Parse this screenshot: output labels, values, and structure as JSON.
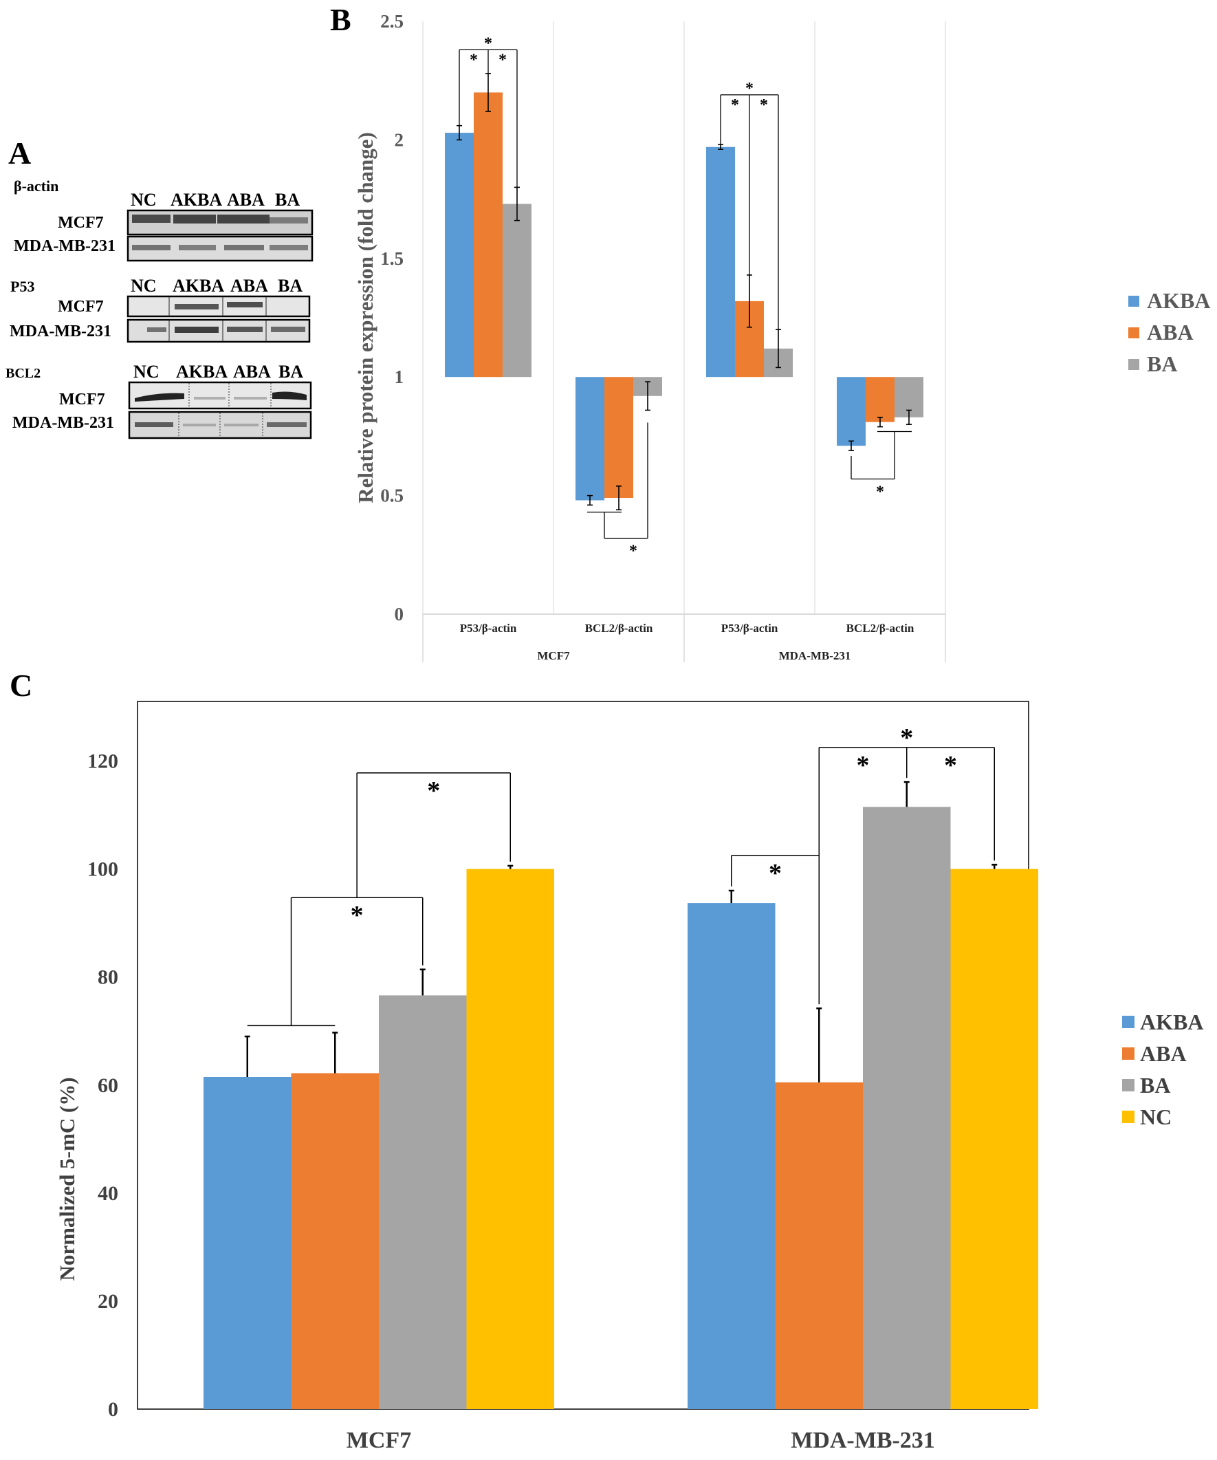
{
  "panels": {
    "a": "A",
    "b": "B",
    "c": "C"
  },
  "colors": {
    "AKBA": "#5b9bd5",
    "ABA": "#ed7d31",
    "BA": "#a5a5a5",
    "NC": "#ffc000"
  },
  "blots": [
    {
      "title": "β-actin",
      "lanes": [
        "NC",
        "AKBA",
        "ABA",
        "BA"
      ],
      "rows": [
        "MCF7",
        "MDA-MB-231"
      ]
    },
    {
      "title": "P53",
      "lanes": [
        "NC",
        "AKBA",
        "ABA",
        "BA"
      ],
      "rows": [
        "MCF7",
        "MDA-MB-231"
      ]
    },
    {
      "title": "BCL2",
      "lanes": [
        "NC",
        "AKBA",
        "ABA",
        "BA"
      ],
      "rows": [
        "MCF7",
        "MDA-MB-231"
      ]
    }
  ],
  "chart_data": [
    {
      "id": "B",
      "type": "bar",
      "ylabel": "Relative protein expression (fold change)",
      "ylim": [
        0,
        2.5
      ],
      "yticks": [
        "0",
        "0.5",
        "1",
        "1.5",
        "2",
        "2.5"
      ],
      "baseline": 1,
      "groups": [
        "MCF7",
        "MDA-MB-231"
      ],
      "categories": [
        "P53/β-actin",
        "BCL2/β-actin",
        "P53/β-actin",
        "BCL2/β-actin"
      ],
      "series": [
        {
          "name": "AKBA",
          "values": [
            2.03,
            0.48,
            1.97,
            0.71
          ],
          "errors": [
            0.03,
            0.02,
            0.01,
            0.02
          ]
        },
        {
          "name": "ABA",
          "values": [
            2.2,
            0.49,
            1.32,
            0.81
          ],
          "errors": [
            0.08,
            0.05,
            0.11,
            0.02
          ]
        },
        {
          "name": "BA",
          "values": [
            1.73,
            0.92,
            1.12,
            0.83
          ],
          "errors": [
            0.07,
            0.06,
            0.08,
            0.03
          ]
        }
      ],
      "significance": [
        "*",
        "*",
        "*",
        "*",
        "*",
        "*",
        "*",
        "*"
      ]
    },
    {
      "id": "C",
      "type": "bar",
      "ylabel": "Normalized 5-mC (%)",
      "ylim": [
        0,
        130
      ],
      "yticks": [
        "0",
        "20",
        "40",
        "60",
        "80",
        "100",
        "120"
      ],
      "categories": [
        "MCF7",
        "MDA-MB-231"
      ],
      "series": [
        {
          "name": "AKBA",
          "values": [
            61.5,
            93.7
          ],
          "errors": [
            7.5,
            2.3
          ]
        },
        {
          "name": "ABA",
          "values": [
            62.2,
            60.5
          ],
          "errors": [
            7.5,
            13.7
          ]
        },
        {
          "name": "BA",
          "values": [
            76.6,
            111.5
          ],
          "errors": [
            4.8,
            4.6
          ]
        },
        {
          "name": "NC",
          "values": [
            100,
            100
          ],
          "errors": [
            0.6,
            0.8
          ]
        }
      ],
      "significance": [
        "*",
        "*",
        "*",
        "*",
        "*",
        "*"
      ]
    }
  ]
}
